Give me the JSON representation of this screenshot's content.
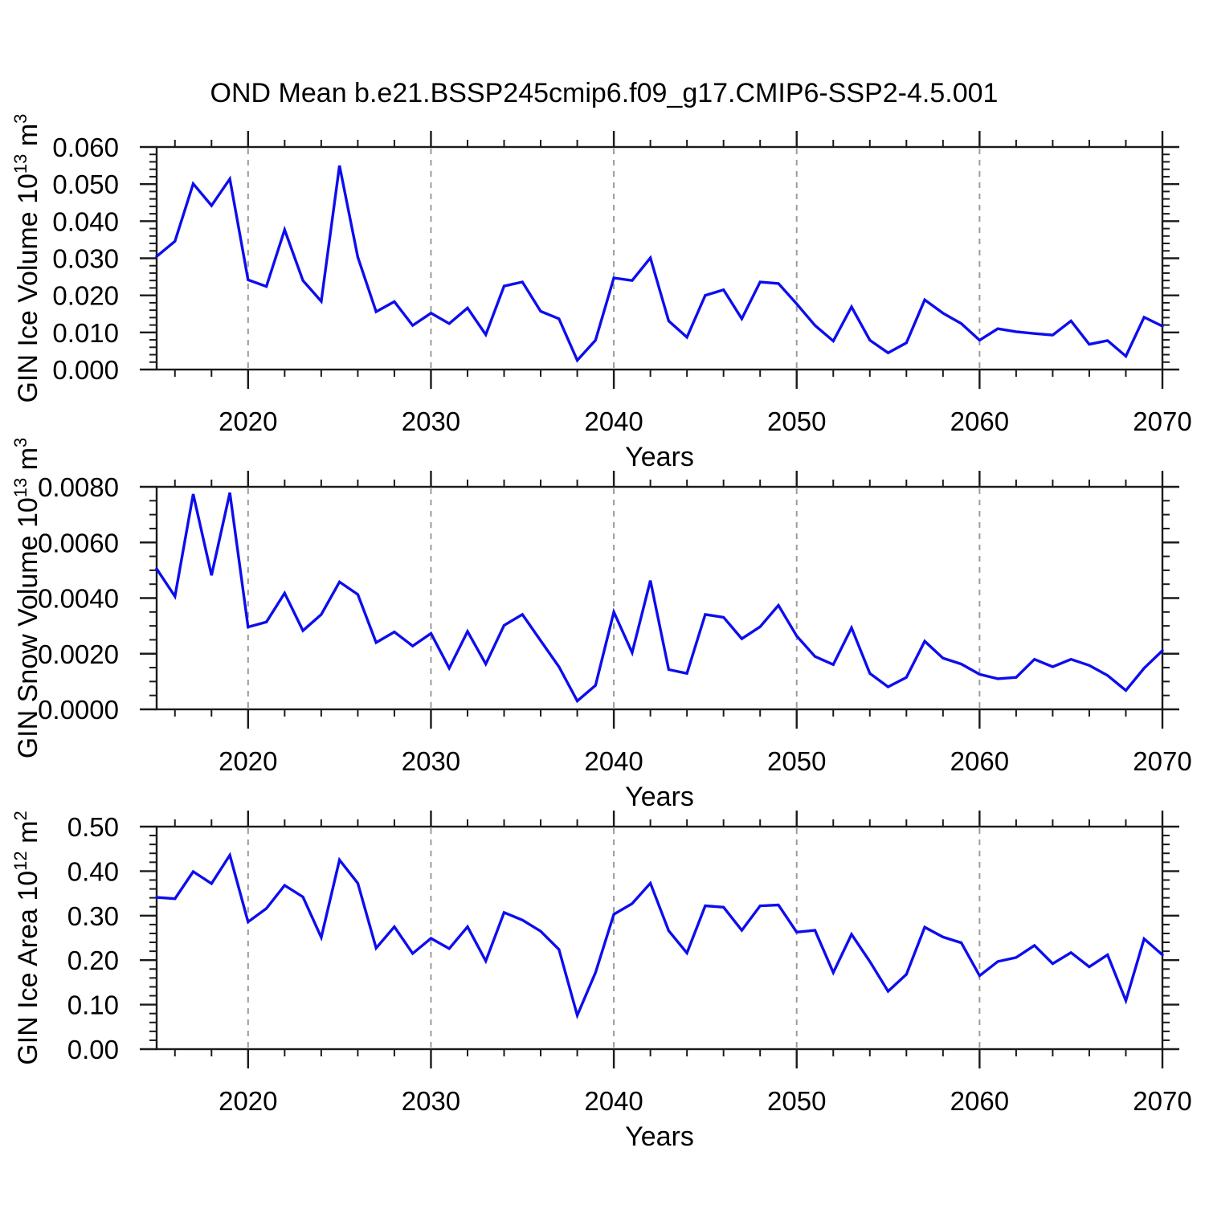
{
  "title": "OND Mean b.e21.BSSP245cmip6.f09_g17.CMIP6-SSP2-4.5.001",
  "colors": {
    "line": "#0d0dee",
    "grid": "#9c9c9c",
    "axis": "#1a1a1a",
    "text": "#000000"
  },
  "x_axis": {
    "label": "Years",
    "start": 2015,
    "end": 2070,
    "major_ticks": [
      2020,
      2030,
      2040,
      2050,
      2060,
      2070
    ],
    "minor_step": 2,
    "gridlines": [
      2020,
      2030,
      2040,
      2050,
      2060
    ]
  },
  "years": [
    2015,
    2016,
    2017,
    2018,
    2019,
    2020,
    2021,
    2022,
    2023,
    2024,
    2025,
    2026,
    2027,
    2028,
    2029,
    2030,
    2031,
    2032,
    2033,
    2034,
    2035,
    2036,
    2037,
    2038,
    2039,
    2040,
    2041,
    2042,
    2043,
    2044,
    2045,
    2046,
    2047,
    2048,
    2049,
    2050,
    2051,
    2052,
    2053,
    2054,
    2055,
    2056,
    2057,
    2058,
    2059,
    2060,
    2061,
    2062,
    2063,
    2064,
    2065,
    2066,
    2067,
    2068,
    2069,
    2070
  ],
  "chart_data": [
    {
      "type": "line",
      "name": "gin-ice-volume",
      "ylabel": "GIN Ice Volume 10^13 m^3",
      "ylabel_parts": [
        {
          "t": "GIN Ice Volume 10"
        },
        {
          "t": "13",
          "sup": true
        },
        {
          "t": " m"
        },
        {
          "t": "3",
          "sup": true
        }
      ],
      "xlabel": "Years",
      "ylim": [
        0,
        0.06
      ],
      "ytick_step": 0.01,
      "y_minor_step": 0.002,
      "ytick_labels": [
        "0.000",
        "0.010",
        "0.020",
        "0.030",
        "0.040",
        "0.050",
        "0.060"
      ],
      "values": [
        0.0305,
        0.0346,
        0.0501,
        0.0442,
        0.0514,
        0.0242,
        0.0224,
        0.0377,
        0.024,
        0.0184,
        0.055,
        0.0303,
        0.0156,
        0.0183,
        0.0119,
        0.0152,
        0.0124,
        0.0166,
        0.0094,
        0.0225,
        0.0236,
        0.0157,
        0.0137,
        0.0025,
        0.0079,
        0.0247,
        0.024,
        0.0301,
        0.0131,
        0.0087,
        0.02,
        0.0215,
        0.0137,
        0.0236,
        0.0232,
        0.0177,
        0.0119,
        0.0077,
        0.0169,
        0.0079,
        0.0045,
        0.0072,
        0.0188,
        0.0152,
        0.0124,
        0.0079,
        0.011,
        0.0102,
        0.0097,
        0.0093,
        0.0131,
        0.0068,
        0.0078,
        0.0036,
        0.0141,
        0.0117
      ]
    },
    {
      "type": "line",
      "name": "gin-snow-volume",
      "ylabel": "GIN Snow Volume 10^13 m^3",
      "ylabel_parts": [
        {
          "t": "GIN Snow Volume 10"
        },
        {
          "t": "13",
          "sup": true
        },
        {
          "t": " m"
        },
        {
          "t": "3",
          "sup": true
        }
      ],
      "xlabel": "Years",
      "ylim": [
        0,
        0.008
      ],
      "ytick_step": 0.002,
      "y_minor_step": 0.0005,
      "ytick_labels": [
        "0.0000",
        "0.0020",
        "0.0040",
        "0.0060",
        "0.0080"
      ],
      "values": [
        0.00505,
        0.00406,
        0.00774,
        0.00482,
        0.00779,
        0.00296,
        0.00314,
        0.00418,
        0.00283,
        0.00341,
        0.00458,
        0.00413,
        0.0024,
        0.00278,
        0.00228,
        0.00273,
        0.00148,
        0.0028,
        0.00163,
        0.00302,
        0.00341,
        0.00247,
        0.00153,
        0.0003,
        0.00086,
        0.0035,
        0.00204,
        0.00463,
        0.00143,
        0.00129,
        0.00341,
        0.00331,
        0.00254,
        0.00297,
        0.00374,
        0.00264,
        0.0019,
        0.00161,
        0.00293,
        0.00129,
        0.00081,
        0.00115,
        0.00245,
        0.00184,
        0.00163,
        0.00126,
        0.0011,
        0.00115,
        0.0018,
        0.00153,
        0.0018,
        0.00158,
        0.00122,
        0.00068,
        0.00148,
        0.00211
      ]
    },
    {
      "type": "line",
      "name": "gin-ice-area",
      "ylabel": "GIN Ice Area 10^12 m^2",
      "ylabel_parts": [
        {
          "t": "GIN Ice Area 10"
        },
        {
          "t": "12",
          "sup": true
        },
        {
          "t": " m"
        },
        {
          "t": "2",
          "sup": true
        }
      ],
      "xlabel": "Years",
      "ylim": [
        0,
        0.5
      ],
      "ytick_step": 0.1,
      "y_minor_step": 0.02,
      "ytick_labels": [
        "0.00",
        "0.10",
        "0.20",
        "0.30",
        "0.40",
        "0.50"
      ],
      "values": [
        0.341,
        0.338,
        0.399,
        0.372,
        0.436,
        0.286,
        0.316,
        0.368,
        0.342,
        0.251,
        0.425,
        0.373,
        0.227,
        0.275,
        0.215,
        0.249,
        0.226,
        0.275,
        0.198,
        0.307,
        0.29,
        0.265,
        0.224,
        0.076,
        0.172,
        0.303,
        0.327,
        0.373,
        0.266,
        0.216,
        0.322,
        0.319,
        0.267,
        0.322,
        0.324,
        0.263,
        0.267,
        0.172,
        0.258,
        0.197,
        0.13,
        0.168,
        0.274,
        0.252,
        0.239,
        0.165,
        0.197,
        0.206,
        0.233,
        0.192,
        0.217,
        0.185,
        0.212,
        0.109,
        0.248,
        0.212
      ]
    }
  ]
}
